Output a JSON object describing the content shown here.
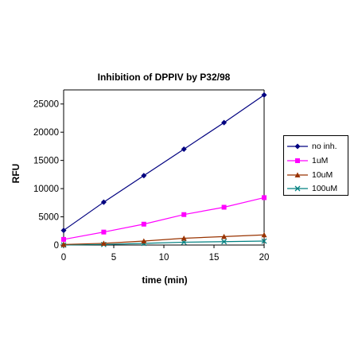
{
  "chart_data": {
    "type": "line",
    "title": "Inhibition of DPPIV by P32/98",
    "xlabel": "time (min)",
    "ylabel": "RFU",
    "xlim": [
      0,
      20
    ],
    "ylim": [
      0,
      25000
    ],
    "xticks": [
      0,
      5,
      10,
      15,
      20
    ],
    "yticks": [
      0,
      5000,
      10000,
      15000,
      20000,
      25000
    ],
    "x": [
      0,
      4,
      8,
      12,
      16,
      20
    ],
    "grid": false,
    "legend_position": "right",
    "series": [
      {
        "name": "no inh.",
        "color": "#000080",
        "marker": "diamond",
        "values": [
          2600,
          7600,
          12300,
          17000,
          21700,
          26600
        ]
      },
      {
        "name": "1uM",
        "color": "#ff00ff",
        "marker": "square",
        "values": [
          1000,
          2300,
          3700,
          5400,
          6700,
          8400
        ]
      },
      {
        "name": "10uM",
        "color": "#993300",
        "marker": "triangle",
        "values": [
          100,
          300,
          700,
          1200,
          1500,
          1800
        ]
      },
      {
        "name": "100uM",
        "color": "#008080",
        "marker": "x",
        "values": [
          0,
          100,
          300,
          500,
          600,
          700
        ]
      }
    ]
  }
}
